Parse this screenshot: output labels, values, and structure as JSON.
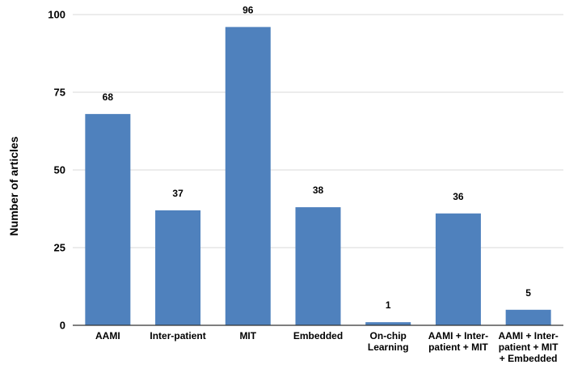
{
  "chart_data": {
    "type": "bar",
    "title": "",
    "xlabel": "",
    "ylabel": "Number of articles",
    "categories": [
      [
        "AAMI"
      ],
      [
        "Inter-patient"
      ],
      [
        "MIT"
      ],
      [
        "Embedded"
      ],
      [
        "On-chip",
        "Learning"
      ],
      [
        "AAMI + Inter-",
        "patient + MIT"
      ],
      [
        "AAMI + Inter-",
        "patient + MIT",
        "+ Embedded"
      ]
    ],
    "values": [
      68,
      37,
      96,
      38,
      1,
      36,
      5
    ],
    "data_labels": [
      "68",
      "37",
      "96",
      "38",
      "1",
      "36",
      "5"
    ],
    "ylim": [
      0,
      100
    ],
    "yticks": [
      0,
      25,
      50,
      75,
      100
    ],
    "grid": true,
    "legend": "none",
    "colors": {
      "bar": "#4f81bd",
      "grid": "#d9d9d9",
      "text": "#000000"
    }
  }
}
